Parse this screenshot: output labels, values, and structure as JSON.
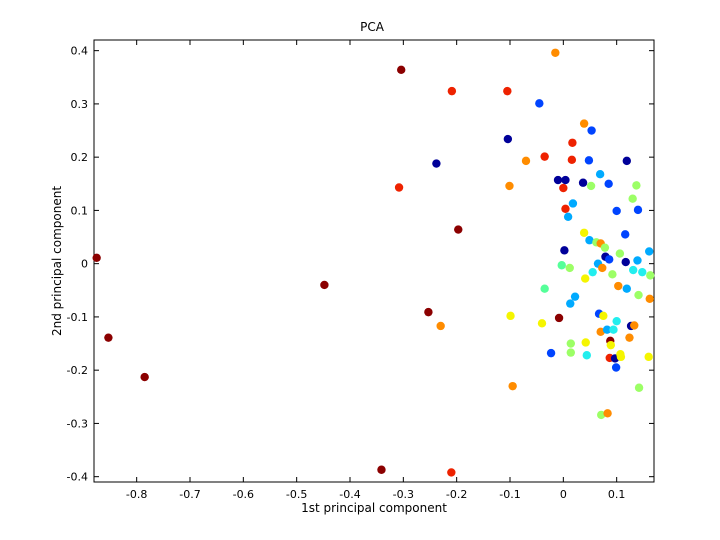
{
  "chart_data": {
    "type": "scatter",
    "title": "PCA",
    "xlabel": "1st principal component",
    "ylabel": "2nd principal component",
    "xlim": [
      -0.88,
      0.17
    ],
    "ylim": [
      -0.41,
      0.42
    ],
    "grid": false,
    "legend": "none",
    "x_ticks": [
      "-0.8",
      "-0.7",
      "-0.6",
      "-0.5",
      "-0.4",
      "-0.3",
      "-0.2",
      "-0.1",
      "0",
      "0.1"
    ],
    "x_tick_values": [
      -0.8,
      -0.7,
      -0.6,
      -0.5,
      -0.4,
      -0.3,
      -0.2,
      -0.1,
      0,
      0.1
    ],
    "y_ticks": [
      "0.4",
      "0.3",
      "0.2",
      "0.1",
      "0",
      "-0.1",
      "-0.2",
      "-0.3",
      "-0.4"
    ],
    "y_tick_values": [
      0.4,
      0.3,
      0.2,
      0.1,
      0,
      -0.1,
      -0.2,
      -0.3,
      -0.4
    ],
    "colors": {
      "darkred": "#8b0000",
      "red": "#ee2200",
      "orange": "#ff8c00",
      "yellow": "#f5f500",
      "lightgreen": "#9cff66",
      "green": "#55ff99",
      "cyan": "#22eeee",
      "skyblue": "#00aaff",
      "blue": "#0044ff",
      "navy": "#000099"
    },
    "points": [
      {
        "x": -0.875,
        "y": 0.011,
        "c": "darkred"
      },
      {
        "x": -0.853,
        "y": -0.139,
        "c": "darkred"
      },
      {
        "x": -0.785,
        "y": -0.213,
        "c": "darkred"
      },
      {
        "x": -0.448,
        "y": -0.04,
        "c": "darkred"
      },
      {
        "x": -0.341,
        "y": -0.387,
        "c": "darkred"
      },
      {
        "x": -0.304,
        "y": 0.364,
        "c": "darkred"
      },
      {
        "x": -0.253,
        "y": -0.091,
        "c": "darkred"
      },
      {
        "x": -0.197,
        "y": 0.064,
        "c": "darkred"
      },
      {
        "x": -0.21,
        "y": -0.392,
        "c": "red"
      },
      {
        "x": -0.209,
        "y": 0.324,
        "c": "red"
      },
      {
        "x": -0.308,
        "y": 0.143,
        "c": "red"
      },
      {
        "x": -0.105,
        "y": 0.324,
        "c": "red"
      },
      {
        "x": -0.23,
        "y": -0.117,
        "c": "orange"
      },
      {
        "x": -0.238,
        "y": 0.188,
        "c": "navy"
      },
      {
        "x": -0.104,
        "y": 0.234,
        "c": "navy"
      },
      {
        "x": -0.045,
        "y": 0.301,
        "c": "blue"
      },
      {
        "x": -0.015,
        "y": 0.396,
        "c": "orange"
      },
      {
        "x": -0.101,
        "y": 0.146,
        "c": "orange"
      },
      {
        "x": -0.07,
        "y": 0.193,
        "c": "orange"
      },
      {
        "x": -0.035,
        "y": 0.201,
        "c": "red"
      },
      {
        "x": -0.095,
        "y": -0.23,
        "c": "orange"
      },
      {
        "x": -0.099,
        "y": -0.098,
        "c": "yellow"
      },
      {
        "x": -0.04,
        "y": -0.112,
        "c": "yellow"
      },
      {
        "x": -0.035,
        "y": -0.047,
        "c": "green"
      },
      {
        "x": -0.023,
        "y": -0.168,
        "c": "blue"
      },
      {
        "x": -0.01,
        "y": 0.157,
        "c": "navy"
      },
      {
        "x": -0.008,
        "y": -0.102,
        "c": "darkred"
      },
      {
        "x": -0.003,
        "y": -0.003,
        "c": "green"
      },
      {
        "x": 0.0,
        "y": 0.142,
        "c": "red"
      },
      {
        "x": 0.002,
        "y": 0.025,
        "c": "navy"
      },
      {
        "x": 0.004,
        "y": 0.103,
        "c": "red"
      },
      {
        "x": 0.004,
        "y": 0.157,
        "c": "navy"
      },
      {
        "x": 0.009,
        "y": 0.088,
        "c": "skyblue"
      },
      {
        "x": 0.012,
        "y": -0.008,
        "c": "lightgreen"
      },
      {
        "x": 0.013,
        "y": -0.075,
        "c": "skyblue"
      },
      {
        "x": 0.014,
        "y": -0.15,
        "c": "lightgreen"
      },
      {
        "x": 0.014,
        "y": -0.167,
        "c": "lightgreen"
      },
      {
        "x": 0.016,
        "y": 0.195,
        "c": "red"
      },
      {
        "x": 0.017,
        "y": 0.227,
        "c": "red"
      },
      {
        "x": 0.018,
        "y": 0.113,
        "c": "skyblue"
      },
      {
        "x": 0.022,
        "y": -0.062,
        "c": "skyblue"
      },
      {
        "x": 0.037,
        "y": 0.152,
        "c": "navy"
      },
      {
        "x": 0.039,
        "y": 0.263,
        "c": "orange"
      },
      {
        "x": 0.039,
        "y": 0.058,
        "c": "yellow"
      },
      {
        "x": 0.041,
        "y": -0.028,
        "c": "yellow"
      },
      {
        "x": 0.042,
        "y": -0.148,
        "c": "yellow"
      },
      {
        "x": 0.044,
        "y": -0.172,
        "c": "cyan"
      },
      {
        "x": 0.048,
        "y": 0.194,
        "c": "blue"
      },
      {
        "x": 0.049,
        "y": 0.044,
        "c": "skyblue"
      },
      {
        "x": 0.052,
        "y": 0.146,
        "c": "lightgreen"
      },
      {
        "x": 0.053,
        "y": 0.25,
        "c": "blue"
      },
      {
        "x": 0.055,
        "y": -0.016,
        "c": "cyan"
      },
      {
        "x": 0.062,
        "y": 0.04,
        "c": "lightgreen"
      },
      {
        "x": 0.065,
        "y": 0.0,
        "c": "skyblue"
      },
      {
        "x": 0.067,
        "y": -0.094,
        "c": "blue"
      },
      {
        "x": 0.069,
        "y": 0.168,
        "c": "skyblue"
      },
      {
        "x": 0.07,
        "y": 0.038,
        "c": "orange"
      },
      {
        "x": 0.07,
        "y": -0.128,
        "c": "orange"
      },
      {
        "x": 0.071,
        "y": -0.284,
        "c": "lightgreen"
      },
      {
        "x": 0.073,
        "y": -0.008,
        "c": "orange"
      },
      {
        "x": 0.075,
        "y": -0.098,
        "c": "yellow"
      },
      {
        "x": 0.078,
        "y": 0.03,
        "c": "lightgreen"
      },
      {
        "x": 0.079,
        "y": 0.013,
        "c": "navy"
      },
      {
        "x": 0.082,
        "y": -0.124,
        "c": "skyblue"
      },
      {
        "x": 0.083,
        "y": -0.281,
        "c": "orange"
      },
      {
        "x": 0.085,
        "y": 0.15,
        "c": "blue"
      },
      {
        "x": 0.086,
        "y": 0.008,
        "c": "blue"
      },
      {
        "x": 0.087,
        "y": -0.177,
        "c": "red"
      },
      {
        "x": 0.088,
        "y": -0.145,
        "c": "darkred"
      },
      {
        "x": 0.089,
        "y": -0.153,
        "c": "yellow"
      },
      {
        "x": 0.092,
        "y": -0.02,
        "c": "lightgreen"
      },
      {
        "x": 0.094,
        "y": -0.124,
        "c": "cyan"
      },
      {
        "x": 0.097,
        "y": -0.178,
        "c": "navy"
      },
      {
        "x": 0.099,
        "y": -0.195,
        "c": "blue"
      },
      {
        "x": 0.1,
        "y": -0.108,
        "c": "cyan"
      },
      {
        "x": 0.1,
        "y": 0.099,
        "c": "blue"
      },
      {
        "x": 0.103,
        "y": -0.042,
        "c": "orange"
      },
      {
        "x": 0.106,
        "y": 0.019,
        "c": "lightgreen"
      },
      {
        "x": 0.107,
        "y": -0.17,
        "c": "yellow"
      },
      {
        "x": 0.108,
        "y": -0.175,
        "c": "yellow"
      },
      {
        "x": 0.116,
        "y": 0.055,
        "c": "blue"
      },
      {
        "x": 0.117,
        "y": 0.003,
        "c": "navy"
      },
      {
        "x": 0.119,
        "y": 0.193,
        "c": "navy"
      },
      {
        "x": 0.119,
        "y": -0.047,
        "c": "skyblue"
      },
      {
        "x": 0.124,
        "y": -0.139,
        "c": "orange"
      },
      {
        "x": 0.127,
        "y": -0.117,
        "c": "navy"
      },
      {
        "x": 0.13,
        "y": 0.122,
        "c": "lightgreen"
      },
      {
        "x": 0.131,
        "y": -0.012,
        "c": "cyan"
      },
      {
        "x": 0.133,
        "y": -0.116,
        "c": "orange"
      },
      {
        "x": 0.137,
        "y": 0.147,
        "c": "lightgreen"
      },
      {
        "x": 0.139,
        "y": 0.006,
        "c": "skyblue"
      },
      {
        "x": 0.14,
        "y": 0.101,
        "c": "blue"
      },
      {
        "x": 0.141,
        "y": -0.059,
        "c": "lightgreen"
      },
      {
        "x": 0.142,
        "y": -0.233,
        "c": "lightgreen"
      },
      {
        "x": 0.148,
        "y": -0.016,
        "c": "cyan"
      },
      {
        "x": 0.16,
        "y": -0.175,
        "c": "yellow"
      },
      {
        "x": 0.161,
        "y": 0.023,
        "c": "skyblue"
      },
      {
        "x": 0.162,
        "y": -0.066,
        "c": "orange"
      },
      {
        "x": 0.163,
        "y": -0.022,
        "c": "lightgreen"
      }
    ]
  }
}
